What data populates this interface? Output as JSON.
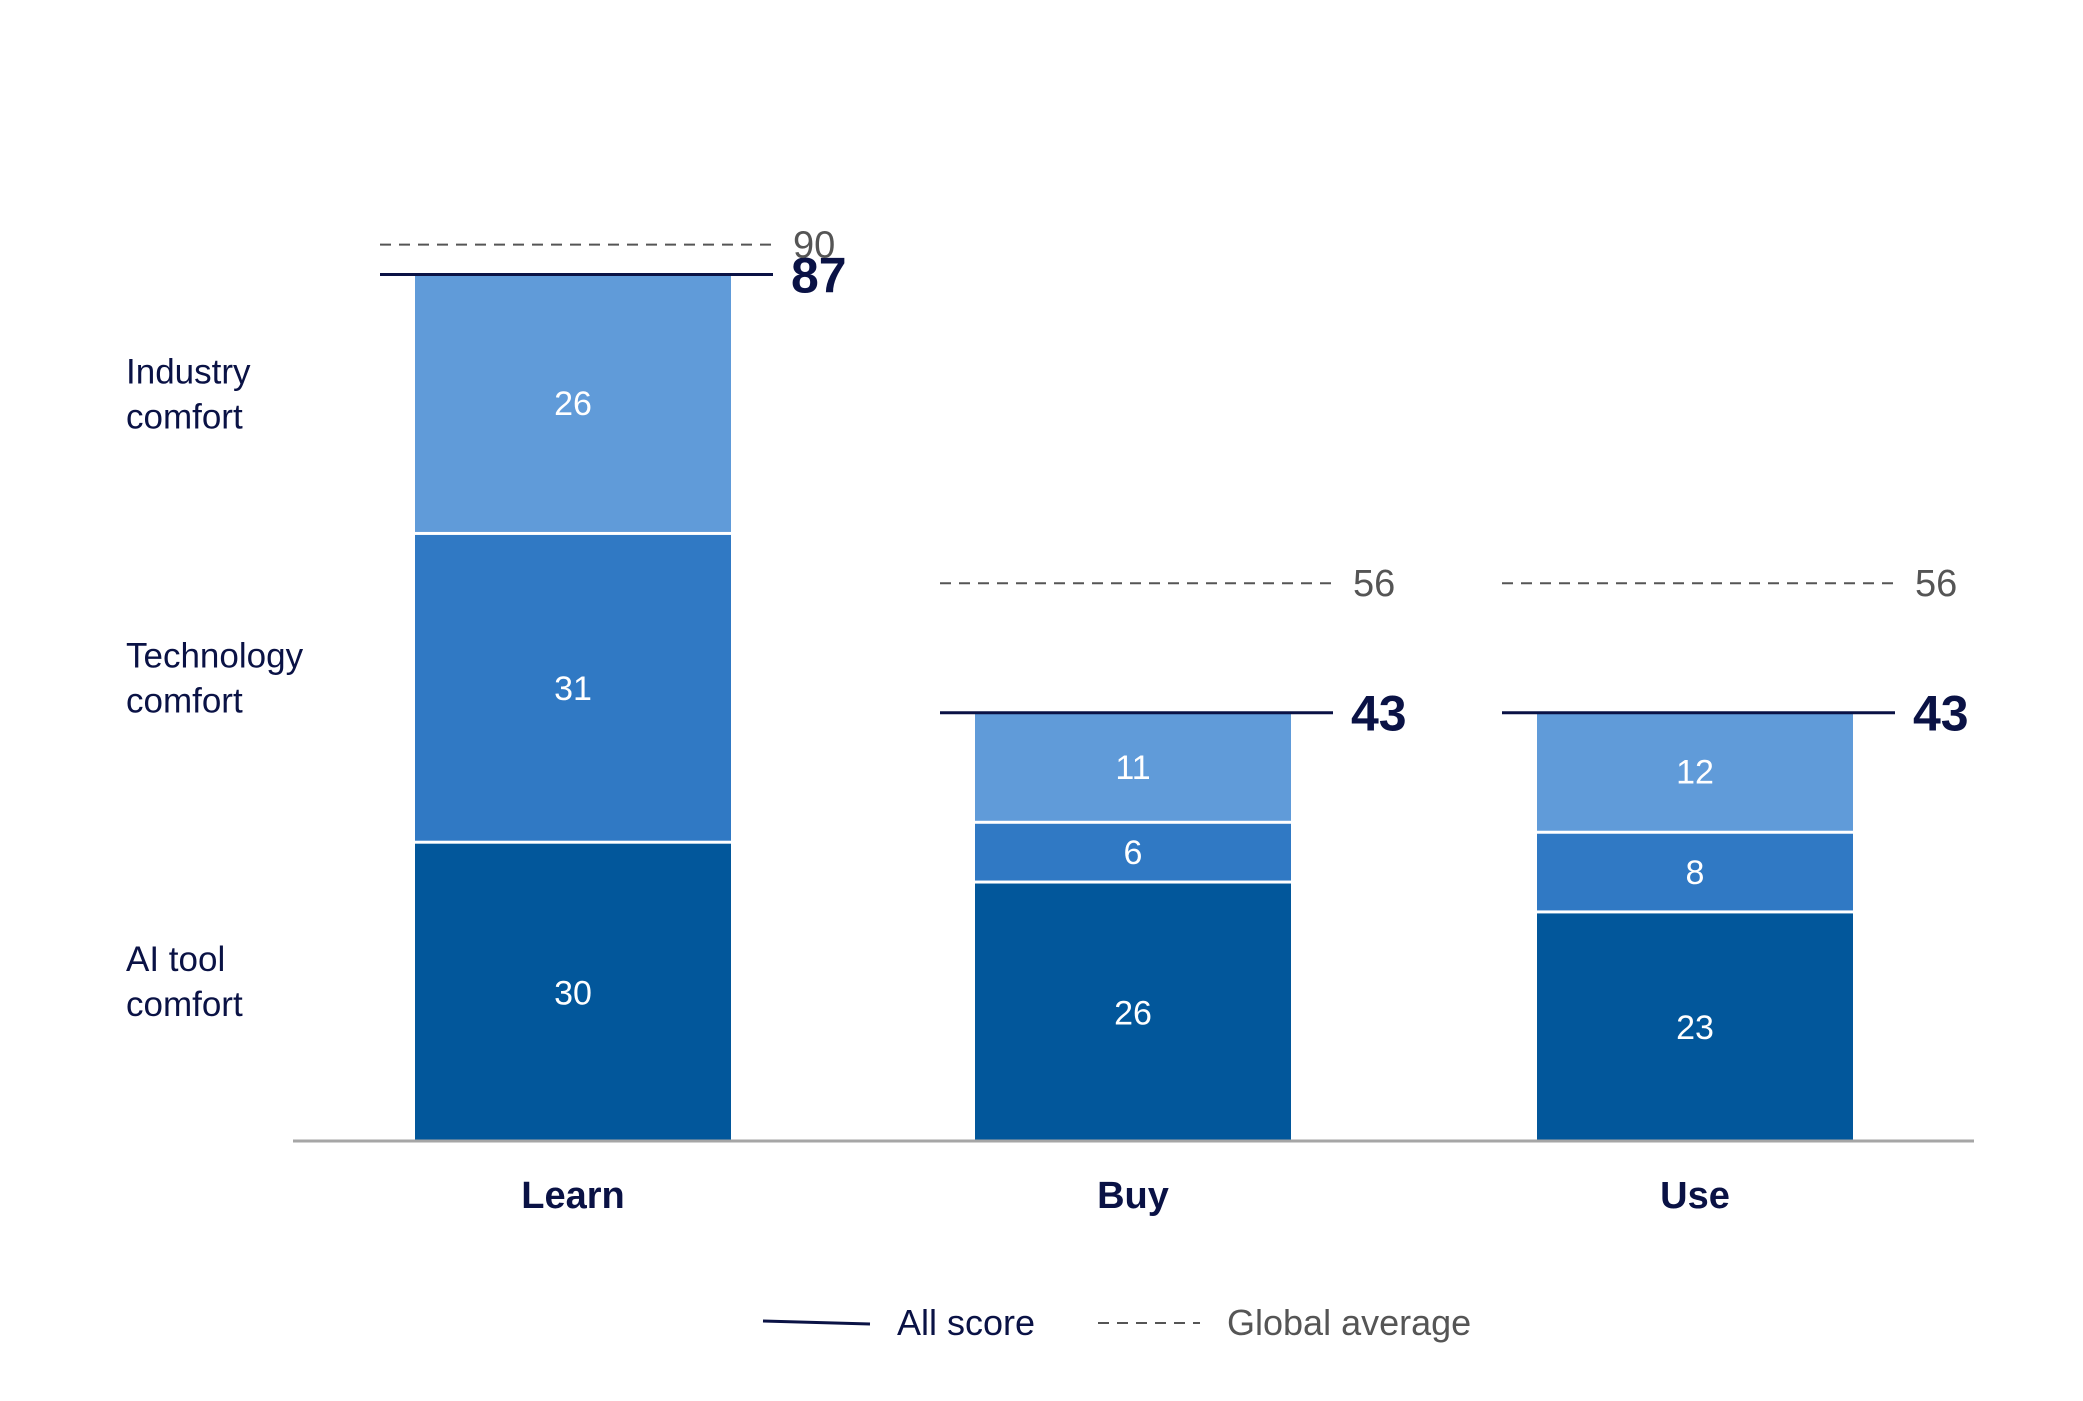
{
  "chart_data": {
    "type": "bar",
    "stacked": true,
    "categories": [
      "Learn",
      "Buy",
      "Use"
    ],
    "series": [
      {
        "name": "AI tool comfort",
        "label_lines": [
          "AI tool",
          "comfort"
        ],
        "values": [
          30,
          26,
          23
        ],
        "color": "#02579b"
      },
      {
        "name": "Technology comfort",
        "label_lines": [
          "Technology",
          "comfort"
        ],
        "values": [
          31,
          6,
          8
        ],
        "color": "#3079c4"
      },
      {
        "name": "Industry comfort",
        "label_lines": [
          "Industry",
          "comfort"
        ],
        "values": [
          26,
          11,
          12
        ],
        "color": "#609bd9"
      }
    ],
    "totals": [
      87,
      43,
      43
    ],
    "global_average": [
      90,
      56,
      56
    ],
    "ylim": [
      0,
      100
    ],
    "legend": {
      "position": "bottom-center",
      "items": [
        {
          "label": "All score",
          "style": "solid",
          "color": "#0a1245"
        },
        {
          "label": "Global average",
          "style": "dashed",
          "color": "#555555"
        }
      ]
    },
    "colors": {
      "total_line": "#0a1245",
      "average_line": "#555555",
      "axis": "#a6a6a6",
      "text_dark": "#0a1245"
    }
  }
}
